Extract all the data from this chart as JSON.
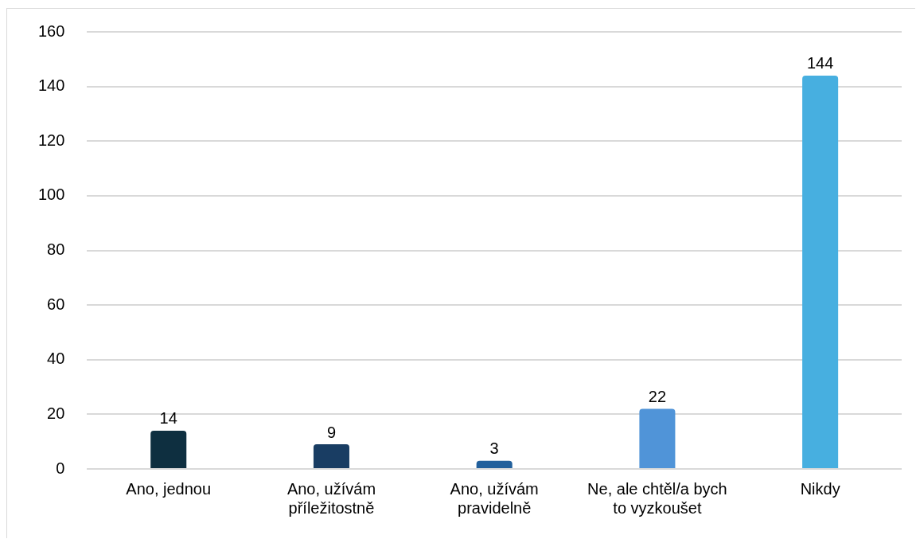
{
  "chart_data": {
    "type": "bar",
    "categories": [
      "Ano, jednou",
      "Ano, užívám příležitostně",
      "Ano, užívám pravidelně",
      "Ne, ale chtěl/a bych to vyzkoušet",
      "Nikdy"
    ],
    "values": [
      14,
      9,
      3,
      22,
      144
    ],
    "colors": [
      "#0e2f40",
      "#193d63",
      "#22609c",
      "#5094d8",
      "#47afe0"
    ],
    "ylim": [
      0,
      160
    ],
    "yticks": [
      0,
      20,
      40,
      60,
      80,
      100,
      120,
      140,
      160
    ],
    "grid": "y",
    "legend": false,
    "data_labels": true
  }
}
